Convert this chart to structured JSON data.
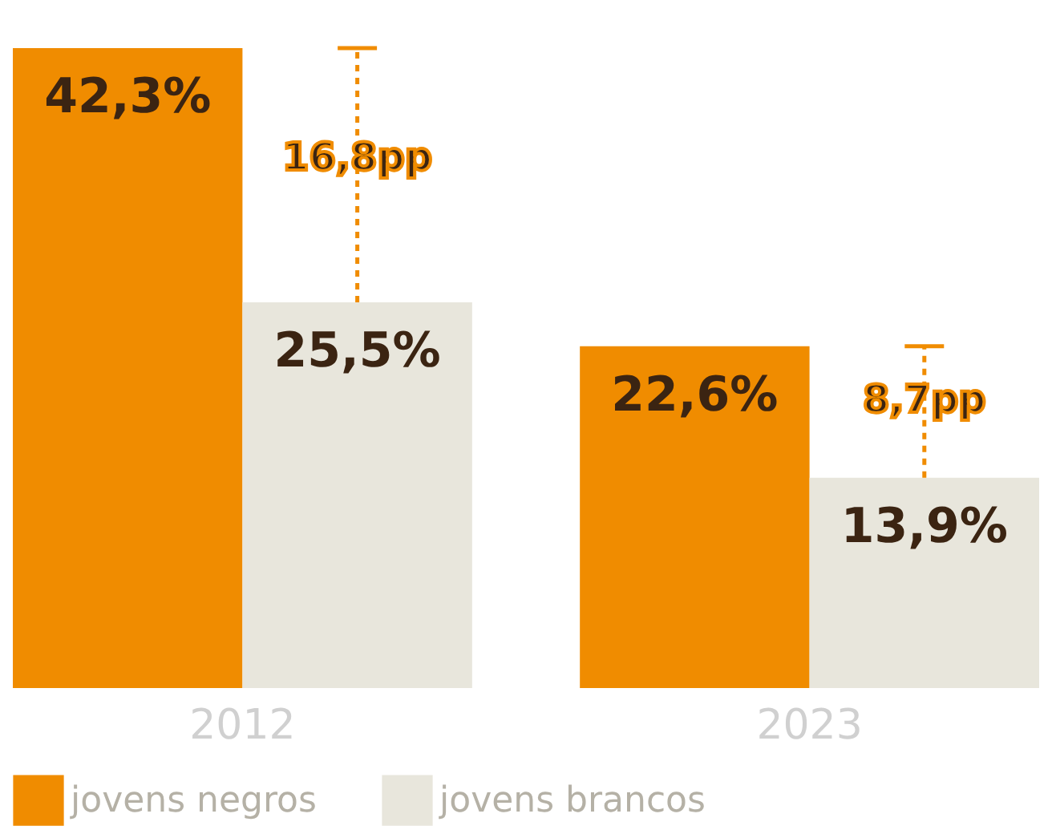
{
  "chart_data": {
    "type": "bar",
    "categories": [
      "2012",
      "2023"
    ],
    "series": [
      {
        "name": "jovens negros",
        "color": "#f08c00",
        "values": [
          42.3,
          22.6
        ],
        "value_labels": [
          "42,3%",
          "22,6%"
        ]
      },
      {
        "name": "jovens brancos",
        "color": "#e8e6dc",
        "values": [
          25.5,
          13.9
        ],
        "value_labels": [
          "25,5%",
          "13,9%"
        ]
      }
    ],
    "annotations": [
      {
        "text": "16,8pp",
        "x": "2012",
        "y": 35
      },
      {
        "text": "8,7pp",
        "x": "2023",
        "y": 19
      }
    ],
    "tick_labels": "x",
    "grid": false,
    "legend": "bottom"
  }
}
